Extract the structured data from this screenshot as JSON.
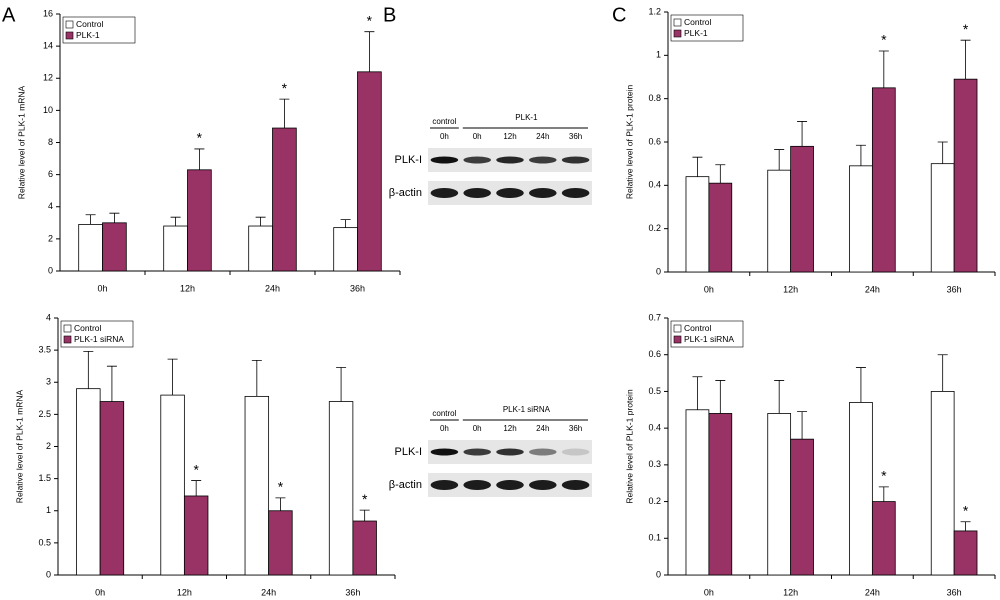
{
  "panel_labels": [
    "A",
    "B",
    "C"
  ],
  "chart_data": [
    {
      "type": "bar",
      "ylabel": "Relative level of PLK-1 mRNA",
      "categories": [
        "0h",
        "12h",
        "24h",
        "36h"
      ],
      "ylim": [
        0,
        16
      ],
      "yticks": [
        0,
        2,
        4,
        6,
        8,
        10,
        12,
        14,
        16
      ],
      "legend": "upper left",
      "series": [
        {
          "name": "Control",
          "color": "#ffffff",
          "values": [
            2.9,
            2.8,
            2.8,
            2.7
          ],
          "errors": [
            0.6,
            0.55,
            0.55,
            0.5
          ]
        },
        {
          "name": "PLK-1",
          "color": "#993366",
          "values": [
            3.0,
            6.3,
            8.9,
            12.4
          ],
          "errors": [
            0.6,
            1.3,
            1.8,
            2.5
          ],
          "significance": [
            null,
            "*",
            "*",
            "*"
          ]
        }
      ]
    },
    {
      "type": "bar",
      "ylabel": "Relative level of PLK-1 protein",
      "categories": [
        "0h",
        "12h",
        "24h",
        "36h"
      ],
      "ylim": [
        0,
        1.2
      ],
      "yticks": [
        0,
        0.2,
        0.4,
        0.6,
        0.8,
        1,
        1.2
      ],
      "legend": "upper left",
      "series": [
        {
          "name": "Control",
          "color": "#ffffff",
          "values": [
            0.44,
            0.47,
            0.49,
            0.5
          ],
          "errors": [
            0.09,
            0.095,
            0.095,
            0.1
          ]
        },
        {
          "name": "PLK-1",
          "color": "#993366",
          "values": [
            0.41,
            0.58,
            0.85,
            0.89
          ],
          "errors": [
            0.085,
            0.115,
            0.17,
            0.18
          ],
          "significance": [
            null,
            null,
            "*",
            "*"
          ]
        }
      ]
    },
    {
      "type": "bar",
      "ylabel": "Relative level of PLK-1 mRNA",
      "categories": [
        "0h",
        "12h",
        "24h",
        "36h"
      ],
      "ylim": [
        0,
        4
      ],
      "yticks": [
        0,
        0.5,
        1,
        1.5,
        2,
        2.5,
        3,
        3.5,
        4
      ],
      "legend": "upper left",
      "series": [
        {
          "name": "Control",
          "color": "#ffffff",
          "values": [
            2.9,
            2.8,
            2.78,
            2.7
          ],
          "errors": [
            0.58,
            0.56,
            0.56,
            0.53
          ]
        },
        {
          "name": "PLK-1 siRNA",
          "color": "#993366",
          "values": [
            2.7,
            1.23,
            1.0,
            0.84
          ],
          "errors": [
            0.55,
            0.24,
            0.2,
            0.17
          ],
          "significance": [
            null,
            "*",
            "*",
            "*"
          ]
        }
      ]
    },
    {
      "type": "bar",
      "ylabel": "Relative level of PLK-1 protein",
      "categories": [
        "0h",
        "12h",
        "24h",
        "36h"
      ],
      "ylim": [
        0,
        0.7
      ],
      "yticks": [
        0,
        0.1,
        0.2,
        0.3,
        0.4,
        0.5,
        0.6,
        0.7
      ],
      "legend": "upper left",
      "series": [
        {
          "name": "Control",
          "color": "#ffffff",
          "values": [
            0.45,
            0.44,
            0.47,
            0.5
          ],
          "errors": [
            0.09,
            0.09,
            0.095,
            0.1
          ]
        },
        {
          "name": "PLK-1 siRNA",
          "color": "#993366",
          "values": [
            0.44,
            0.37,
            0.2,
            0.12
          ],
          "errors": [
            0.09,
            0.075,
            0.04,
            0.025
          ],
          "significance": [
            null,
            null,
            "*",
            "*"
          ]
        }
      ]
    }
  ],
  "blots": [
    {
      "control_label": "control",
      "control_lanes": [
        "0h"
      ],
      "group_label": "PLK-1",
      "group_lanes": [
        "0h",
        "12h",
        "24h",
        "36h"
      ],
      "rows": [
        "PLK-I",
        "β-actin"
      ]
    },
    {
      "control_label": "control",
      "control_lanes": [
        "0h"
      ],
      "group_label": "PLK-1 siRNA",
      "group_lanes": [
        "0h",
        "12h",
        "24h",
        "36h"
      ],
      "rows": [
        "PLK-I",
        "β-actin"
      ]
    }
  ]
}
